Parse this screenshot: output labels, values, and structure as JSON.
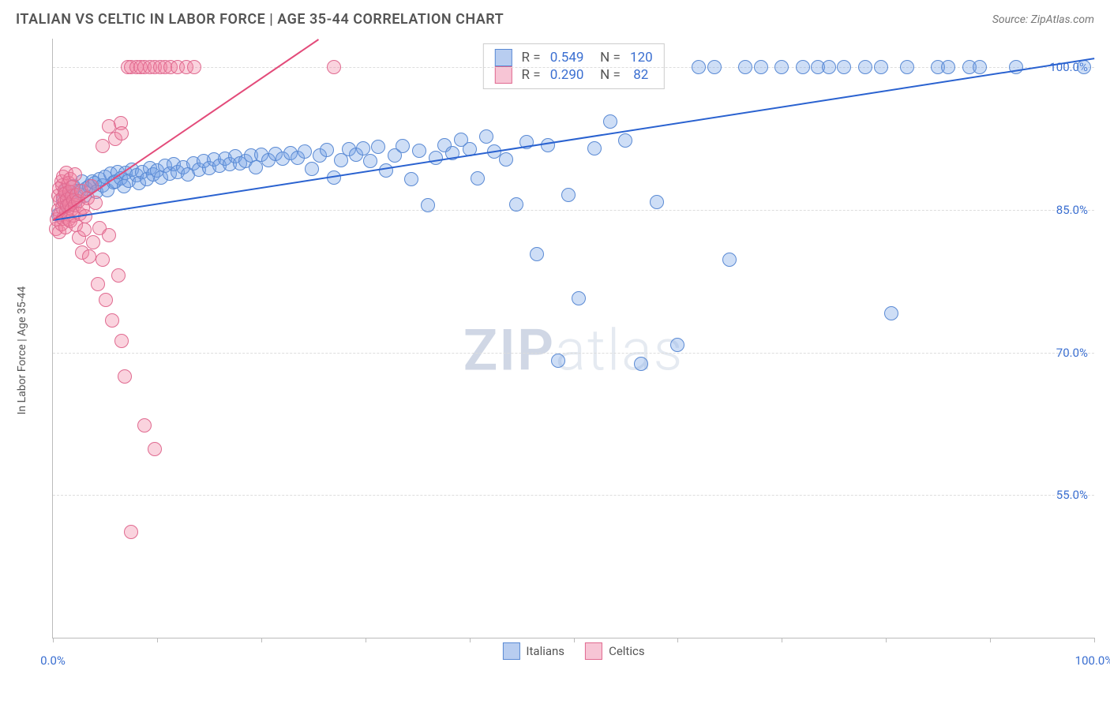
{
  "header": {
    "title": "ITALIAN VS CELTIC IN LABOR FORCE | AGE 35-44 CORRELATION CHART",
    "source": "Source: ZipAtlas.com"
  },
  "watermark": {
    "part1": "ZIP",
    "part2": "atlas"
  },
  "chart": {
    "type": "scatter",
    "yaxis_title": "In Labor Force | Age 35-44",
    "background_color": "#ffffff",
    "grid_color": "#dddddd",
    "axis_color": "#bbbbbb",
    "text_color": "#555555",
    "value_color": "#3b6fd1",
    "marker_radius": 9,
    "marker_opacity": 0.35,
    "xlim": [
      0,
      100
    ],
    "ylim": [
      40,
      103
    ],
    "xticks": [
      0,
      10,
      20,
      30,
      40,
      50,
      60,
      70,
      80,
      90,
      100
    ],
    "xtick_labels": {
      "0": "0.0%",
      "100": "100.0%"
    },
    "yticks": [
      55,
      70,
      85,
      100
    ],
    "ytick_labels": {
      "55": "55.0%",
      "70": "70.0%",
      "85": "85.0%",
      "100": "100.0%"
    },
    "series": [
      {
        "name": "Italians",
        "color_fill": "rgba(115,160,230,0.35)",
        "color_stroke": "#5a8ad4",
        "swatch_fill": "#b8cdf0",
        "swatch_border": "#5a8ad4",
        "r": "0.549",
        "n": "120",
        "trend": {
          "x1": 0,
          "y1": 84,
          "x2": 100,
          "y2": 101,
          "color": "#2a62d0",
          "width": 2.5
        },
        "points": [
          [
            0.5,
            84.5
          ],
          [
            1,
            86
          ],
          [
            1.2,
            87
          ],
          [
            1.5,
            85.5
          ],
          [
            1.8,
            86.8
          ],
          [
            2,
            87.5
          ],
          [
            2.2,
            86
          ],
          [
            2.5,
            87
          ],
          [
            2.8,
            88
          ],
          [
            3,
            86.5
          ],
          [
            3.2,
            87.2
          ],
          [
            3.5,
            87.5
          ],
          [
            3.8,
            88
          ],
          [
            4,
            87.8
          ],
          [
            4.2,
            86.9
          ],
          [
            4.5,
            88.2
          ],
          [
            4.8,
            87.6
          ],
          [
            5,
            88.5
          ],
          [
            5.2,
            87.1
          ],
          [
            5.5,
            88.8
          ],
          [
            5.8,
            87.9
          ],
          [
            6,
            88
          ],
          [
            6.2,
            89
          ],
          [
            6.5,
            88.3
          ],
          [
            6.8,
            87.5
          ],
          [
            7,
            88.9
          ],
          [
            7.3,
            88.1
          ],
          [
            7.6,
            89.2
          ],
          [
            8,
            88.6
          ],
          [
            8.3,
            87.8
          ],
          [
            8.6,
            89
          ],
          [
            9,
            88.2
          ],
          [
            9.3,
            89.4
          ],
          [
            9.6,
            88.7
          ],
          [
            10,
            89.1
          ],
          [
            10.4,
            88.4
          ],
          [
            10.8,
            89.6
          ],
          [
            11.2,
            88.8
          ],
          [
            11.6,
            89.8
          ],
          [
            12,
            89
          ],
          [
            12.5,
            89.5
          ],
          [
            13,
            88.7
          ],
          [
            13.5,
            89.9
          ],
          [
            14,
            89.2
          ],
          [
            14.5,
            90.1
          ],
          [
            15,
            89.4
          ],
          [
            15.5,
            90.3
          ],
          [
            16,
            89.6
          ],
          [
            16.5,
            90.4
          ],
          [
            17,
            89.8
          ],
          [
            17.5,
            90.6
          ],
          [
            18,
            89.9
          ],
          [
            18.5,
            90.1
          ],
          [
            19,
            90.7
          ],
          [
            19.5,
            89.5
          ],
          [
            20,
            90.8
          ],
          [
            20.7,
            90.2
          ],
          [
            21.4,
            90.9
          ],
          [
            22.1,
            90.4
          ],
          [
            22.8,
            91
          ],
          [
            23.5,
            90.5
          ],
          [
            24.2,
            91.1
          ],
          [
            24.9,
            89.3
          ],
          [
            25.6,
            90.7
          ],
          [
            26.3,
            91.3
          ],
          [
            27,
            88.4
          ],
          [
            27.7,
            90.2
          ],
          [
            28.4,
            91.4
          ],
          [
            29.1,
            90.8
          ],
          [
            29.8,
            91.5
          ],
          [
            30.5,
            90.1
          ],
          [
            31.2,
            91.6
          ],
          [
            32,
            89.1
          ],
          [
            32.8,
            90.7
          ],
          [
            33.6,
            91.7
          ],
          [
            34.4,
            88.2
          ],
          [
            35.2,
            91.2
          ],
          [
            36,
            85.5
          ],
          [
            36.8,
            90.5
          ],
          [
            37.6,
            91.8
          ],
          [
            38.4,
            91
          ],
          [
            39.2,
            92.4
          ],
          [
            40,
            91.4
          ],
          [
            40.8,
            88.3
          ],
          [
            41.6,
            92.7
          ],
          [
            42.4,
            91.1
          ],
          [
            43.5,
            90.3
          ],
          [
            44.5,
            85.6
          ],
          [
            45.5,
            92.1
          ],
          [
            46.5,
            80.3
          ],
          [
            47.5,
            91.8
          ],
          [
            48.5,
            69.1
          ],
          [
            49.5,
            86.6
          ],
          [
            50.5,
            75.7
          ],
          [
            52,
            91.5
          ],
          [
            53.5,
            94.3
          ],
          [
            55,
            92.3
          ],
          [
            56.5,
            68.8
          ],
          [
            58,
            85.8
          ],
          [
            60,
            70.8
          ],
          [
            62,
            100
          ],
          [
            63.5,
            100
          ],
          [
            65,
            79.8
          ],
          [
            66.5,
            100
          ],
          [
            68,
            100
          ],
          [
            70,
            100
          ],
          [
            72,
            100
          ],
          [
            73.5,
            100
          ],
          [
            74.5,
            100
          ],
          [
            76,
            100
          ],
          [
            78,
            100
          ],
          [
            79.5,
            100
          ],
          [
            80.5,
            74.1
          ],
          [
            82,
            100
          ],
          [
            85,
            100
          ],
          [
            86,
            100
          ],
          [
            88,
            100
          ],
          [
            89,
            100
          ],
          [
            92.5,
            100
          ],
          [
            99,
            100
          ]
        ]
      },
      {
        "name": "Celtics",
        "color_fill": "rgba(240,130,160,0.35)",
        "color_stroke": "#e06a90",
        "swatch_fill": "#f7c5d5",
        "swatch_border": "#e06a90",
        "r": "0.290",
        "n": " 82",
        "trend": {
          "x1": 0,
          "y1": 84,
          "x2": 25.5,
          "y2": 103,
          "color": "#e34b7a",
          "width": 2
        },
        "points": [
          [
            0.3,
            83
          ],
          [
            0.4,
            84
          ],
          [
            0.5,
            85
          ],
          [
            0.5,
            86.5
          ],
          [
            0.6,
            82.7
          ],
          [
            0.6,
            87.2
          ],
          [
            0.7,
            84.5
          ],
          [
            0.7,
            86
          ],
          [
            0.8,
            88
          ],
          [
            0.8,
            83.5
          ],
          [
            0.9,
            85.2
          ],
          [
            0.9,
            87.6
          ],
          [
            1,
            86.3
          ],
          [
            1,
            84.1
          ],
          [
            1,
            88.5
          ],
          [
            1.1,
            85.8
          ],
          [
            1.1,
            87.1
          ],
          [
            1.2,
            83.2
          ],
          [
            1.2,
            86.7
          ],
          [
            1.3,
            88.9
          ],
          [
            1.3,
            84.8
          ],
          [
            1.4,
            86.1
          ],
          [
            1.4,
            85.4
          ],
          [
            1.5,
            87.8
          ],
          [
            1.5,
            84
          ],
          [
            1.6,
            86.9
          ],
          [
            1.6,
            85.6
          ],
          [
            1.7,
            88.2
          ],
          [
            1.7,
            83.8
          ],
          [
            1.8,
            86.4
          ],
          [
            1.8,
            85.1
          ],
          [
            1.9,
            87.4
          ],
          [
            2,
            84.4
          ],
          [
            2,
            86
          ],
          [
            2.1,
            85.5
          ],
          [
            2.1,
            88.7
          ],
          [
            2.2,
            83.4
          ],
          [
            2.3,
            86.6
          ],
          [
            2.4,
            85.9
          ],
          [
            2.5,
            82.1
          ],
          [
            2.6,
            84.6
          ],
          [
            2.7,
            87
          ],
          [
            2.8,
            80.5
          ],
          [
            2.9,
            85.2
          ],
          [
            3,
            82.9
          ],
          [
            3.1,
            84.3
          ],
          [
            3.3,
            86.2
          ],
          [
            3.5,
            80.1
          ],
          [
            3.7,
            87.5
          ],
          [
            3.9,
            81.6
          ],
          [
            4.1,
            85.7
          ],
          [
            4.3,
            77.2
          ],
          [
            4.5,
            83.1
          ],
          [
            4.8,
            79.8
          ],
          [
            5.1,
            75.5
          ],
          [
            5.4,
            82.3
          ],
          [
            5.4,
            93.8
          ],
          [
            5.7,
            73.4
          ],
          [
            6,
            92.5
          ],
          [
            6.3,
            78.1
          ],
          [
            6.6,
            71.2
          ],
          [
            6.9,
            67.5
          ],
          [
            6.5,
            94.1
          ],
          [
            7.2,
            100
          ],
          [
            7.5,
            100
          ],
          [
            8,
            100
          ],
          [
            8.4,
            100
          ],
          [
            8.8,
            62.3
          ],
          [
            8.8,
            100
          ],
          [
            9.8,
            59.8
          ],
          [
            9.3,
            100
          ],
          [
            9.8,
            100
          ],
          [
            10.3,
            100
          ],
          [
            10.8,
            100
          ],
          [
            11.3,
            100
          ],
          [
            12,
            100
          ],
          [
            12.8,
            100
          ],
          [
            13.6,
            100
          ],
          [
            7.5,
            51.1
          ],
          [
            6.6,
            93
          ],
          [
            4.8,
            91.7
          ],
          [
            27,
            100
          ]
        ]
      }
    ],
    "legend_bottom": [
      {
        "label": "Italians",
        "swatch_fill": "#b8cdf0",
        "swatch_border": "#5a8ad4"
      },
      {
        "label": "Celtics",
        "swatch_fill": "#f7c5d5",
        "swatch_border": "#e06a90"
      }
    ]
  }
}
